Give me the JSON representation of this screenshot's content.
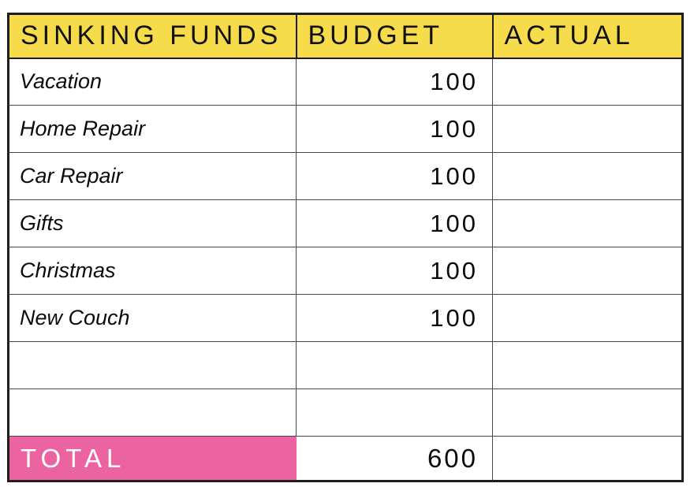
{
  "table": {
    "columns": [
      {
        "label": "SINKING FUNDS"
      },
      {
        "label": "BUDGET"
      },
      {
        "label": "ACTUAL"
      }
    ],
    "rows": [
      {
        "name": "Vacation",
        "budget": "100",
        "actual": ""
      },
      {
        "name": "Home Repair",
        "budget": "100",
        "actual": ""
      },
      {
        "name": "Car Repair",
        "budget": "100",
        "actual": ""
      },
      {
        "name": "Gifts",
        "budget": "100",
        "actual": ""
      },
      {
        "name": "Christmas",
        "budget": "100",
        "actual": ""
      },
      {
        "name": "New Couch",
        "budget": "100",
        "actual": ""
      },
      {
        "name": "",
        "budget": "",
        "actual": ""
      },
      {
        "name": "",
        "budget": "",
        "actual": ""
      }
    ],
    "total": {
      "label": "TOTAL",
      "budget": "600",
      "actual": ""
    }
  },
  "colors": {
    "header_bg": "#F6DC4B",
    "total_bg": "#EC63A2",
    "border_dark": "#1E1E1E",
    "grid": "#474747",
    "header_text": "#111111",
    "total_text": "#FFFFFF",
    "body_text": "#0B0B0B"
  }
}
